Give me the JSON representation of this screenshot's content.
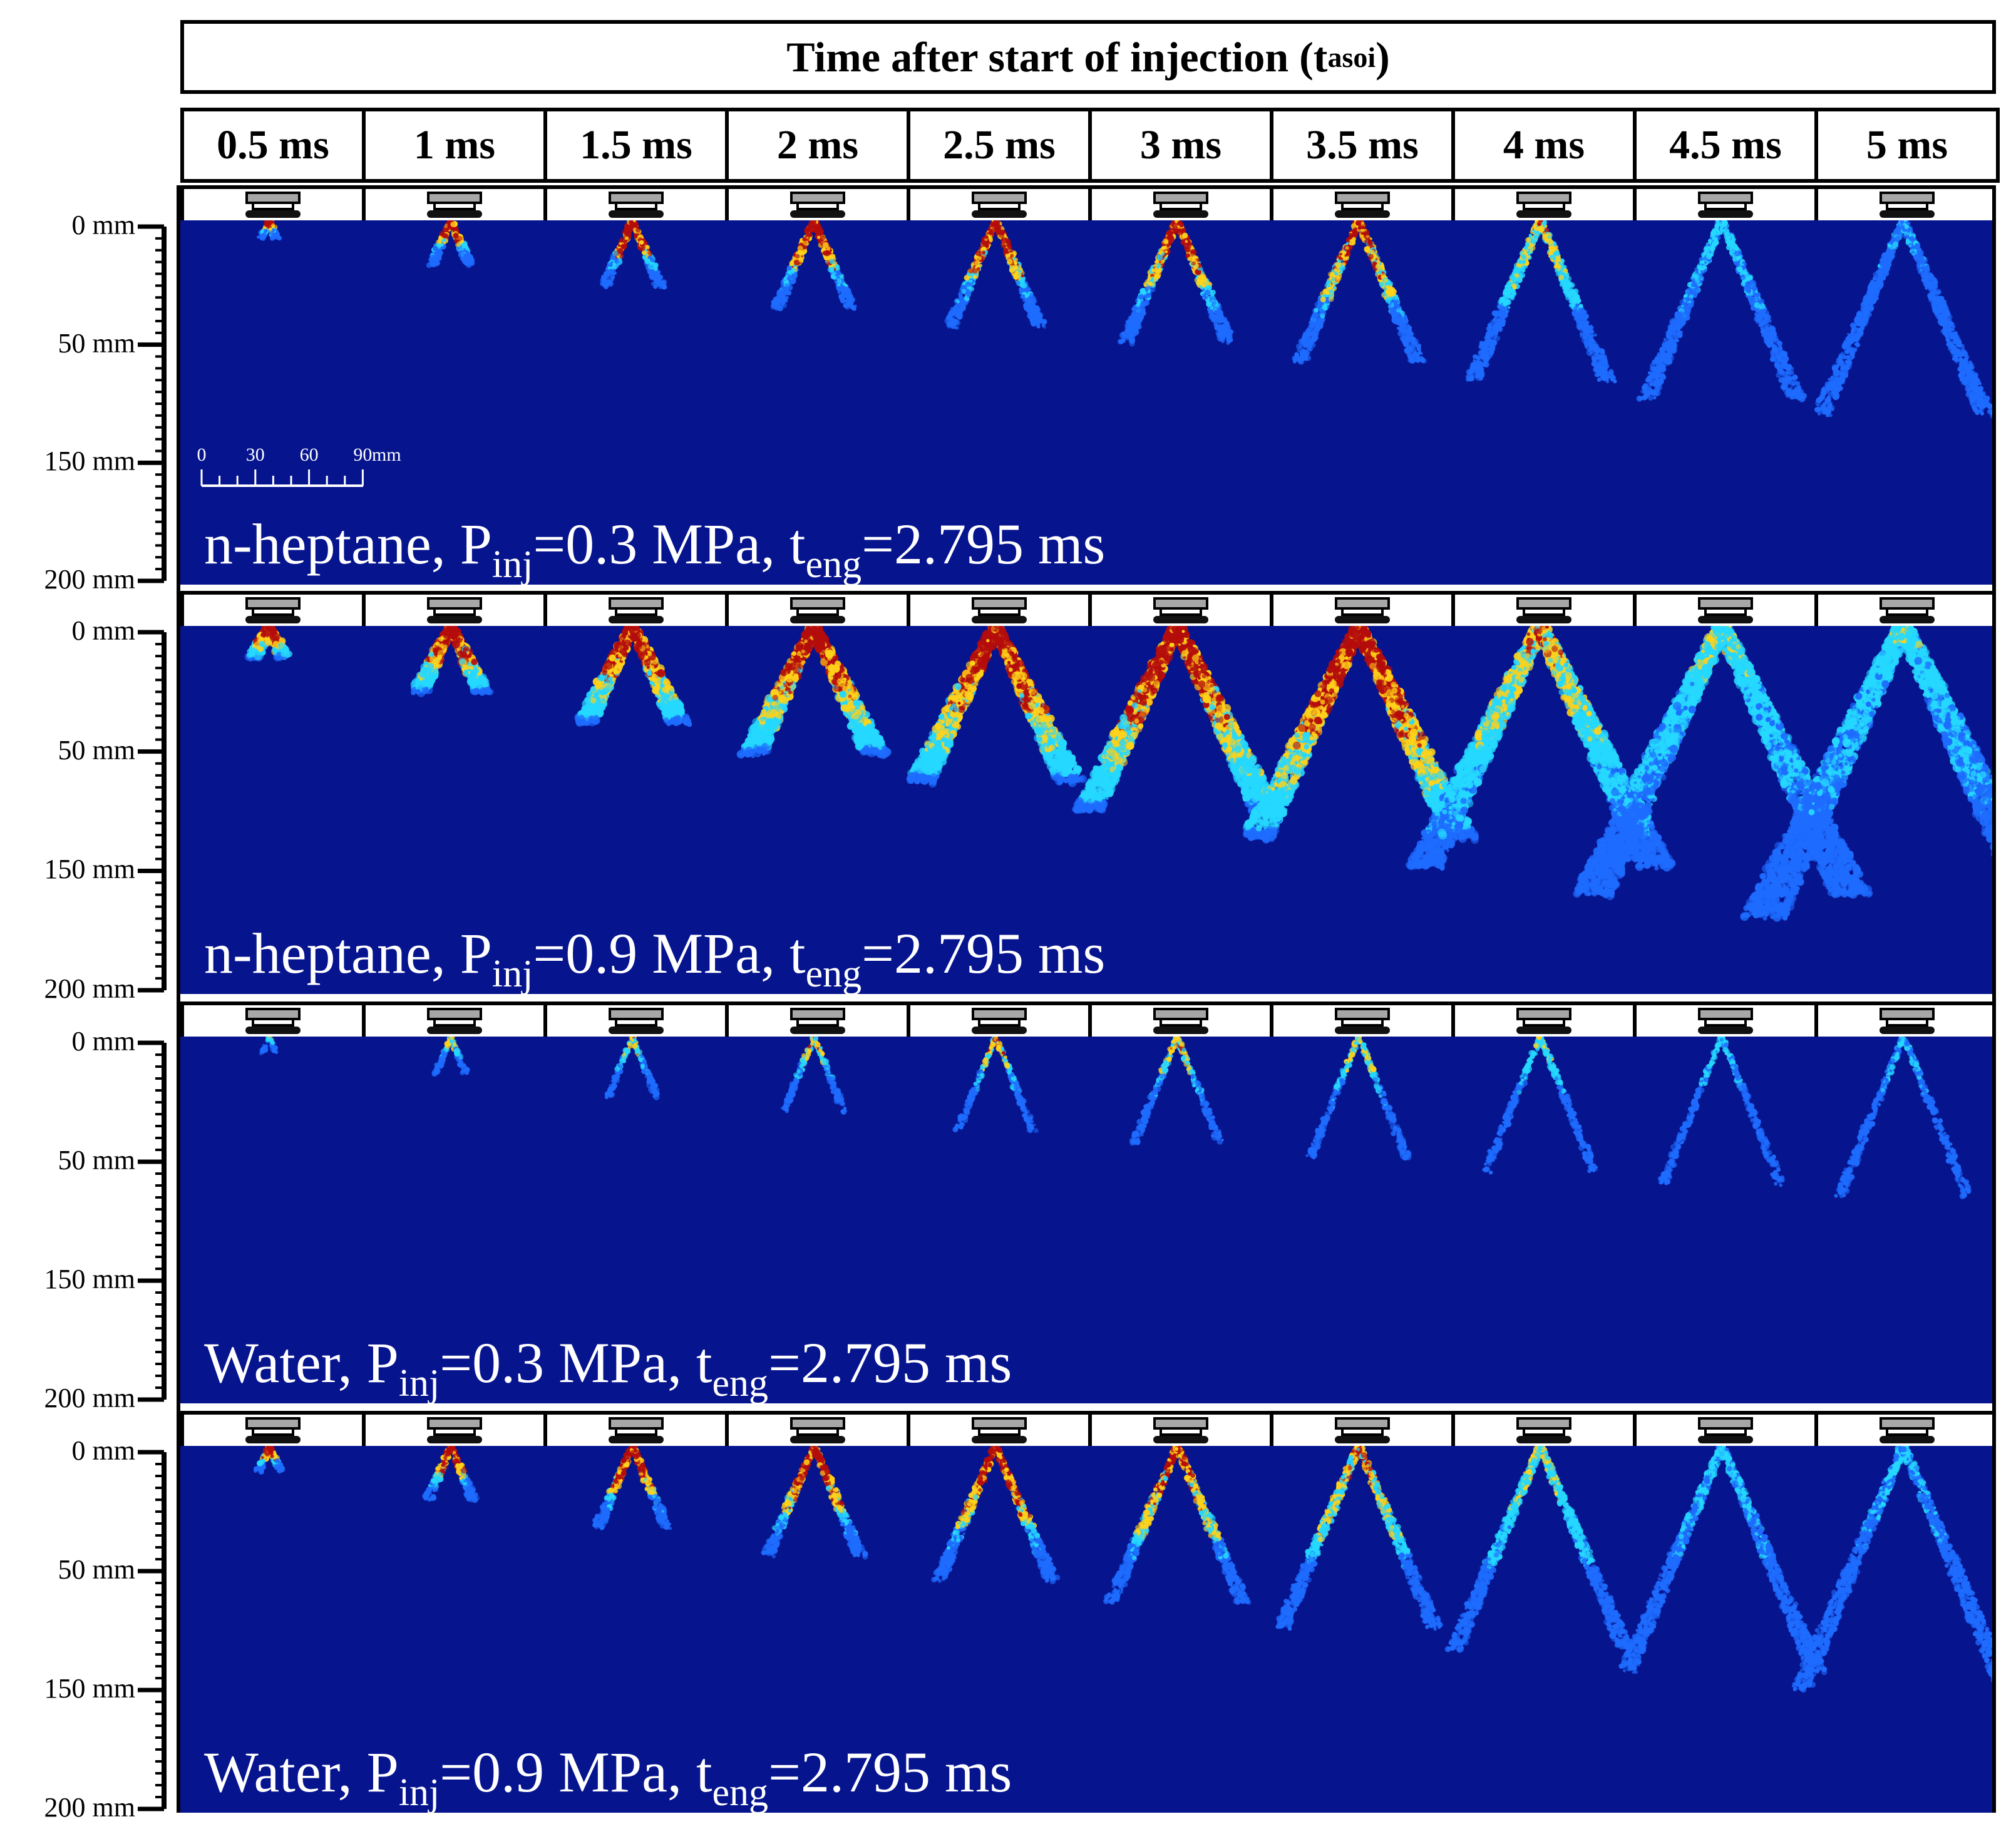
{
  "figure": {
    "header": {
      "title": "Time after start of injection (t",
      "title_sub": "asoi",
      "title_close": ")"
    },
    "time_labels": [
      "0.5 ms",
      "1 ms",
      "1.5 ms",
      "2 ms",
      "2.5 ms",
      "3 ms",
      "3.5 ms",
      "4 ms",
      "4.5 ms",
      "5 ms"
    ],
    "axis_tick_labels": [
      "0 mm",
      "50 mm",
      "150 mm",
      "200 mm"
    ],
    "scale_bar": {
      "ticks": [
        "0",
        "30",
        "60",
        "90"
      ],
      "unit": "mm"
    },
    "panels": [
      {
        "fluid": "n-heptane",
        "p_text": ", P",
        "p_sub": "inj",
        "p_value": "=0.3 MPa, t",
        "t_sub": "eng",
        "t_value": "=2.795 ms"
      },
      {
        "fluid": "n-heptane",
        "p_text": ", P",
        "p_sub": "inj",
        "p_value": "=0.9 MPa, t",
        "t_sub": "eng",
        "t_value": "=2.795 ms"
      },
      {
        "fluid": "Water",
        "p_text": ", P",
        "p_sub": "inj",
        "p_value": "=0.3 MPa, t",
        "t_sub": "eng",
        "t_value": "=2.795 ms"
      },
      {
        "fluid": "Water",
        "p_text": ", P",
        "p_sub": "inj",
        "p_value": "=0.9 MPa, t",
        "t_sub": "eng",
        "t_value": "=2.795 ms"
      }
    ],
    "colors": {
      "background": "#06148e",
      "low": "#1e6cff",
      "mid": "#25d8ff",
      "high": "#ffd21a",
      "peak": "#b40c0c"
    }
  }
}
